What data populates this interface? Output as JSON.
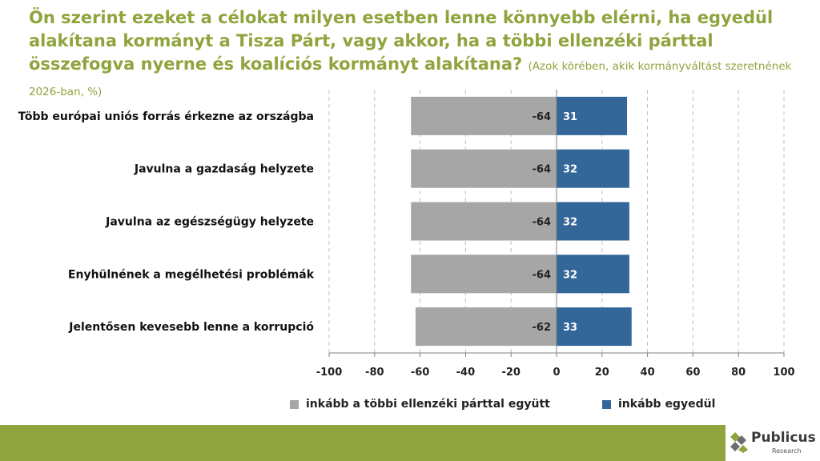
{
  "title": {
    "main": "Ön szerint ezeket a célokat milyen esetben lenne könnyebb elérni, ha egyedül alakítana kormányt a Tisza Párt, vagy akkor, ha a többi ellenzéki párttal összefogva nyerne és koalíciós kormányt alakítana?",
    "subtitle": "(Azok körében, akik kormányváltást szeretnének 2026-ban, %)"
  },
  "colors": {
    "title": "#8fa43d",
    "series_together": "#a6a6a6",
    "series_alone": "#336699",
    "footer": "#8fa43d",
    "gridline": "#bfbfbf"
  },
  "chart_data": {
    "type": "bar",
    "orientation": "horizontal",
    "stacking": "diverging",
    "categories": [
      "Több európai uniós forrás érkezne az országba",
      "Javulna a gazdaság helyzete",
      "Javulna az egészségügy helyzete",
      "Enyhülnének a megélhetési problémák",
      "Jelentősen kevesebb lenne a korrupció"
    ],
    "series": [
      {
        "name": "inkább a többi ellenzéki párttal együtt",
        "values": [
          -64,
          -64,
          -64,
          -64,
          -62
        ]
      },
      {
        "name": "inkább egyedül",
        "values": [
          31,
          32,
          32,
          32,
          33
        ]
      }
    ],
    "xlim": [
      -100,
      100
    ],
    "xticks": [
      -100,
      -80,
      -60,
      -40,
      -20,
      0,
      20,
      40,
      60,
      80,
      100
    ],
    "grid": "vertical-dashed",
    "legend": "bottom"
  },
  "legend": {
    "together": "inkább a többi ellenzéki párttal együtt",
    "alone": "inkább egyedül"
  },
  "logo": {
    "name": "Publicus",
    "sub": "Research"
  }
}
